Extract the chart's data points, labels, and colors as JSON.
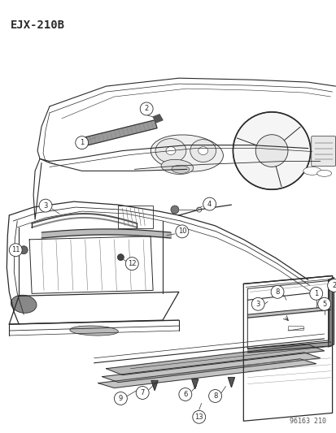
{
  "title": "EJX-210B",
  "watermark": "96163 210",
  "bg_color": "#ffffff",
  "line_color": "#2a2a2a",
  "fig_width": 4.14,
  "fig_height": 5.33,
  "dpi": 100
}
